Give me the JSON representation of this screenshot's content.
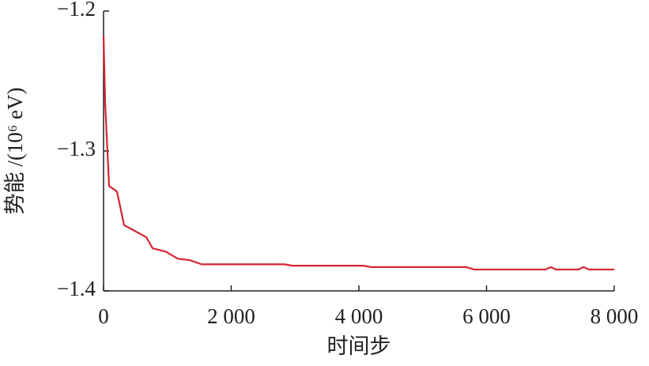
{
  "chart_data": {
    "type": "line",
    "xlabel": "时间步",
    "ylabel": "势能 /(10⁶ eV)",
    "x": [
      0,
      25,
      87,
      210,
      322,
      483,
      669,
      768,
      978,
      1164,
      1350,
      1536,
      2836,
      2960,
      4074,
      4198,
      5684,
      5808,
      6923,
      7009,
      7084,
      7443,
      7517,
      7604,
      8000
    ],
    "series": [
      {
        "color": "#d6252f",
        "values": [
          -1.2175,
          -1.2655,
          -1.325,
          -1.329,
          -1.353,
          -1.357,
          -1.3616,
          -1.3695,
          -1.372,
          -1.377,
          -1.378,
          -1.381,
          -1.381,
          -1.382,
          -1.382,
          -1.383,
          -1.383,
          -1.3847,
          -1.3847,
          -1.383,
          -1.3847,
          -1.3847,
          -1.383,
          -1.3847,
          -1.3847
        ]
      }
    ],
    "xlim": [
      0,
      8000
    ],
    "xticks": [
      0,
      {
        "value": 2000,
        "label": "2 000"
      },
      {
        "value": 4000,
        "label": "4 000"
      },
      {
        "value": 6000,
        "label": "6 000"
      },
      {
        "value": 8000,
        "label": "8 000"
      }
    ],
    "ylim": [
      -1.4,
      -1.2
    ],
    "yticks": [
      {
        "value": -1.4,
        "label": "−1.4"
      },
      {
        "value": -1.3,
        "label": "−1.3"
      },
      {
        "value": -1.2,
        "label": "−1.2"
      }
    ]
  }
}
